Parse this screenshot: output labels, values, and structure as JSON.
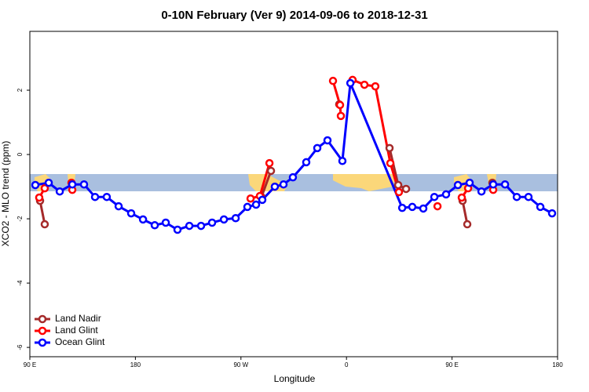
{
  "chart_data": {
    "type": "line",
    "title": "0-10N February (Ver 9)   2014-09-06 to 2018-12-31",
    "x_label": "Longitude",
    "y_label": "XCO2 - MLO trend (ppm)",
    "xlim": [
      90,
      540
    ],
    "ylim": [
      -6.29,
      3.83
    ],
    "xticks": [
      {
        "value": 90,
        "label": "90 E"
      },
      {
        "value": 180,
        "label": "180"
      },
      {
        "value": 270,
        "label": "90 W"
      },
      {
        "value": 360,
        "label": "0"
      },
      {
        "value": 450,
        "label": "90 E"
      },
      {
        "value": 540,
        "label": "180"
      }
    ],
    "yticks": [
      2,
      0,
      -2,
      -4,
      -6
    ],
    "legend": "bottom-left",
    "series": [
      {
        "name": "Land Nadir",
        "color": "#a52a2a",
        "x": [
          98.7,
          102.7,
          null,
          287.5,
          295.6,
          null,
          353.8,
          null,
          396.7,
          404.1,
          410.8,
          null,
          459,
          463,
          null,
          484.4
        ],
        "values": [
          -1.44,
          -2.17,
          null,
          -1.32,
          -0.51,
          null,
          1.56,
          null,
          0.2,
          -0.95,
          -1.07,
          null,
          -1.44,
          -2.17,
          null,
          -0.88
        ]
      },
      {
        "name": "Land Glint",
        "color": "#ff0000",
        "x": [
          98,
          102.7,
          null,
          125.5,
          126.2,
          null,
          278.2,
          286.2,
          294.3,
          null,
          348.5,
          354.5,
          355.2,
          null,
          365.2,
          375.3,
          384.6,
          397.4,
          404.7,
          null,
          437.6,
          null,
          458.3,
          463.7,
          null,
          485.1
        ],
        "values": [
          -1.34,
          -1.05,
          null,
          -0.88,
          -1.1,
          null,
          -1.37,
          -1.29,
          -0.27,
          null,
          2.29,
          1.54,
          1.2,
          null,
          2.32,
          2.17,
          2.12,
          -0.27,
          -1.17,
          null,
          -1.61,
          null,
          -1.34,
          -1.05,
          null,
          -1.1
        ]
      },
      {
        "name": "Ocean Glint",
        "color": "#0000ff",
        "x": [
          94.7,
          106.1,
          115.5,
          126.2,
          136.2,
          145.6,
          155.6,
          165.7,
          176.4,
          186.5,
          196.5,
          205.9,
          215.9,
          226,
          236,
          245.4,
          255.5,
          265.5,
          275.5,
          282.9,
          288.2,
          298.9,
          306.3,
          314.3,
          325.7,
          335.1,
          343.8,
          356.5,
          363.3,
          407.5,
          416.1,
          425.5,
          434.9,
          444.9,
          455,
          465,
          475.1,
          485.1,
          495.2,
          505.2,
          515.2,
          525.3,
          535.3
        ],
        "values": [
          -0.95,
          -0.88,
          -1.15,
          -0.93,
          -0.93,
          -1.32,
          -1.32,
          -1.61,
          -1.83,
          -2.02,
          -2.2,
          -2.12,
          -2.34,
          -2.22,
          -2.22,
          -2.12,
          -2.02,
          -1.98,
          -1.63,
          -1.56,
          -1.41,
          -1.0,
          -0.93,
          -0.71,
          -0.24,
          0.2,
          0.44,
          -0.2,
          2.22,
          -1.66,
          -1.63,
          -1.68,
          -1.32,
          -1.24,
          -0.95,
          -0.88,
          -1.15,
          -0.93,
          -0.93,
          -1.32,
          -1.32,
          -1.63,
          -1.83
        ]
      }
    ]
  }
}
